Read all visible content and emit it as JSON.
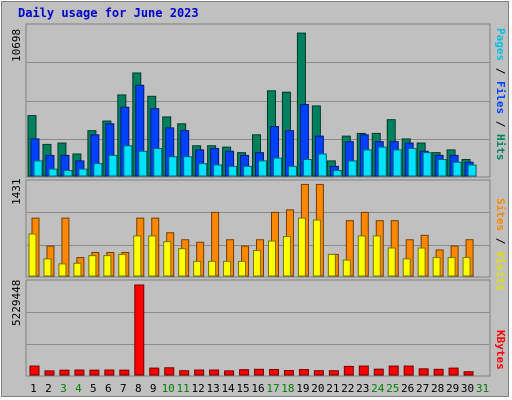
{
  "chart_data": [
    {
      "type": "bar",
      "title": "Daily usage for June 2023",
      "panel": "hits-files-pages",
      "y_max_label": "10698",
      "ylim": [
        0,
        10698
      ],
      "legend": [
        "Pages",
        "Files",
        "Hits"
      ],
      "colors": {
        "Hits": "#00805c",
        "Files": "#0040ff",
        "Pages": "#00e0ff"
      },
      "categories": [
        "1",
        "2",
        "3",
        "4",
        "5",
        "6",
        "7",
        "8",
        "9",
        "10",
        "11",
        "12",
        "13",
        "14",
        "15",
        "16",
        "17",
        "18",
        "19",
        "20",
        "21",
        "22",
        "23",
        "24",
        "25",
        "26",
        "27",
        "28",
        "29",
        "30",
        "31"
      ],
      "series": [
        {
          "name": "Hits",
          "values": [
            4400,
            2300,
            2400,
            1600,
            3300,
            4000,
            5900,
            7500,
            5800,
            4300,
            3800,
            2200,
            2200,
            2100,
            1700,
            3000,
            6200,
            6100,
            10400,
            5100,
            1100,
            2900,
            3100,
            3100,
            4100,
            2700,
            2400,
            1700,
            1900,
            1200,
            0
          ]
        },
        {
          "name": "Files",
          "values": [
            2700,
            1500,
            1500,
            1100,
            3000,
            3800,
            5000,
            6600,
            4900,
            3500,
            3300,
            1900,
            2000,
            1800,
            1500,
            1700,
            3600,
            3300,
            5200,
            2900,
            700,
            2500,
            3000,
            2500,
            2500,
            2400,
            1800,
            1500,
            1500,
            1000,
            0
          ]
        },
        {
          "name": "Pages",
          "values": [
            1100,
            500,
            400,
            500,
            900,
            1500,
            2200,
            1800,
            2000,
            1400,
            1400,
            900,
            800,
            700,
            700,
            1100,
            1300,
            700,
            1200,
            1600,
            400,
            1100,
            1900,
            2100,
            1900,
            2000,
            1700,
            1200,
            1000,
            800,
            0
          ]
        }
      ]
    },
    {
      "type": "bar",
      "panel": "sites-visits",
      "y_max_label": "1431",
      "ylim": [
        0,
        1431
      ],
      "legend": [
        "Sites",
        "Visits"
      ],
      "colors": {
        "Visits": "#ff8800",
        "Sites": "#ffff00"
      },
      "series": [
        {
          "name": "Visits",
          "values": [
            910,
            470,
            910,
            290,
            370,
            370,
            370,
            910,
            910,
            680,
            570,
            530,
            1000,
            570,
            470,
            570,
            1000,
            1040,
            1440,
            1440,
            340,
            870,
            1000,
            870,
            870,
            570,
            640,
            410,
            470,
            570,
            0
          ]
        },
        {
          "name": "Sites",
          "values": [
            660,
            270,
            190,
            200,
            320,
            320,
            340,
            630,
            630,
            540,
            430,
            230,
            230,
            230,
            230,
            400,
            550,
            620,
            910,
            880,
            340,
            250,
            630,
            630,
            440,
            270,
            440,
            290,
            290,
            290,
            0
          ]
        }
      ]
    },
    {
      "type": "bar",
      "panel": "kbytes",
      "y_max_label": "5229448",
      "ylim": [
        0,
        5229448
      ],
      "legend": [
        "KBytes"
      ],
      "colors": {
        "KBytes": "#ff0000"
      },
      "series": [
        {
          "name": "KBytes",
          "values": [
            520000,
            240000,
            280000,
            290000,
            280000,
            290000,
            280000,
            5229448,
            400000,
            420000,
            250000,
            290000,
            290000,
            240000,
            310000,
            330000,
            320000,
            260000,
            320000,
            250000,
            250000,
            500000,
            520000,
            340000,
            520000,
            520000,
            360000,
            330000,
            400000,
            190000,
            0
          ]
        }
      ]
    }
  ],
  "weekend_days": [
    "3",
    "4",
    "10",
    "11",
    "17",
    "18",
    "24",
    "25",
    "31"
  ],
  "day_label_colors": {
    "weekday": "#000000",
    "weekend": "#008000"
  }
}
